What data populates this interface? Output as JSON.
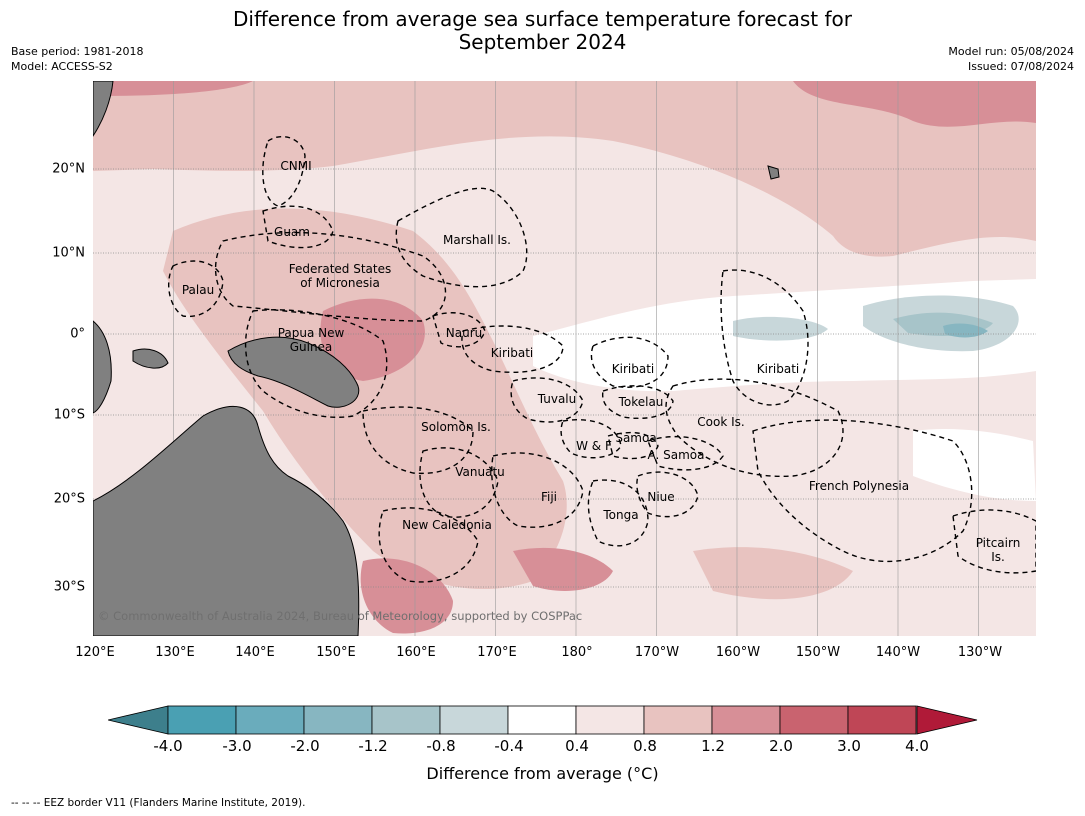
{
  "title_line1": "Difference from average sea surface temperature forecast for",
  "title_line2": "September 2024",
  "meta": {
    "base_period": "Base period: 1981-2018",
    "model": "Model: ACCESS-S2",
    "model_run": "Model run: 05/08/2024",
    "issued": "Issued: 07/08/2024"
  },
  "lon_ticks": [
    "120°E",
    "130°E",
    "140°E",
    "150°E",
    "160°E",
    "170°E",
    "180°",
    "170°W",
    "160°W",
    "150°W",
    "140°W",
    "130°W"
  ],
  "lat_ticks": [
    "20°N",
    "10°N",
    "0°",
    "10°S",
    "20°S",
    "30°S"
  ],
  "places": {
    "cnmi": "CNMI",
    "guam": "Guam",
    "marshall": "Marshall Is.",
    "palau": "Palau",
    "fsm_1": "Federated States",
    "fsm_2": "of Micronesia",
    "png_1": "Papua New",
    "png_2": "Guinea",
    "nauru": "Nauru",
    "kiribati_w": "Kiribati",
    "kiribati_c": "Kiribati",
    "kiribati_e": "Kiribati",
    "tuvalu": "Tuvalu",
    "tokelau": "Tokelau",
    "cook": "Cook Is.",
    "solomon": "Solomon Is.",
    "wf": "W & F",
    "samoa": "Samoa",
    "asamoa": "A. Samoa",
    "vanuatu": "Vanuatu",
    "fiji": "Fiji",
    "niue": "Niue",
    "tonga": "Tonga",
    "frpoly": "French Polynesia",
    "newcal": "New Caledonia",
    "pitcairn_1": "Pitcairn",
    "pitcairn_2": "Is."
  },
  "copyright": "© Commonwealth of Australia 2024, Bureau of Meteorology, supported by COSPPac",
  "colorbar": {
    "ticks": [
      "-4.0",
      "-3.0",
      "-2.0",
      "-1.2",
      "-0.8",
      "-0.4",
      "0.4",
      "0.8",
      "1.2",
      "2.0",
      "3.0",
      "4.0"
    ],
    "colors": [
      "#4aa0b3",
      "#6aacbc",
      "#87b6c1",
      "#a7c4c9",
      "#c8d7da",
      "#ffffff",
      "#f4e6e5",
      "#e8c3c0",
      "#d78f97",
      "#c9636f",
      "#bf4656"
    ],
    "low_extend_color": "#3d7f8c",
    "high_extend_color": "#b01a38",
    "label": "Difference from average (°C)"
  },
  "footer_note": "--  --  -- EEZ border V11 (Flanders Marine Institute, 2019)."
}
